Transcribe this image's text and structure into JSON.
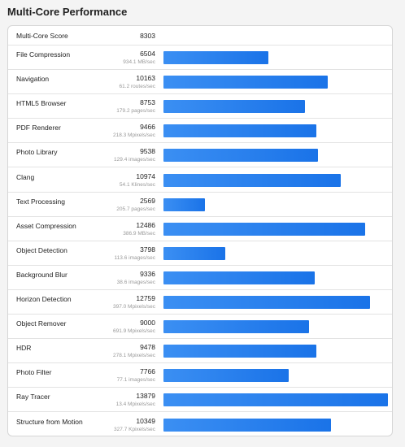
{
  "page": {
    "title": "Multi-Core Performance"
  },
  "chart_data": {
    "type": "bar",
    "title": "Multi-Core Performance",
    "summary": {
      "label": "Multi-Core Score",
      "value": 8303
    },
    "max_value": 13879,
    "bar_color": "#1a73e8",
    "rows": [
      {
        "name": "File Compression",
        "score": 6504,
        "detail": "934.1 MB/sec"
      },
      {
        "name": "Navigation",
        "score": 10163,
        "detail": "61.2 routes/sec"
      },
      {
        "name": "HTML5 Browser",
        "score": 8753,
        "detail": "179.2 pages/sec"
      },
      {
        "name": "PDF Renderer",
        "score": 9466,
        "detail": "218.3 Mpixels/sec"
      },
      {
        "name": "Photo Library",
        "score": 9538,
        "detail": "129.4 images/sec"
      },
      {
        "name": "Clang",
        "score": 10974,
        "detail": "54.1 Klines/sec"
      },
      {
        "name": "Text Processing",
        "score": 2569,
        "detail": "205.7 pages/sec"
      },
      {
        "name": "Asset Compression",
        "score": 12486,
        "detail": "386.9 MB/sec"
      },
      {
        "name": "Object Detection",
        "score": 3798,
        "detail": "113.6 images/sec"
      },
      {
        "name": "Background Blur",
        "score": 9336,
        "detail": "38.6 images/sec"
      },
      {
        "name": "Horizon Detection",
        "score": 12759,
        "detail": "397.0 Mpixels/sec"
      },
      {
        "name": "Object Remover",
        "score": 9000,
        "detail": "691.9 Mpixels/sec"
      },
      {
        "name": "HDR",
        "score": 9478,
        "detail": "278.1 Mpixels/sec"
      },
      {
        "name": "Photo Filter",
        "score": 7766,
        "detail": "77.1 images/sec"
      },
      {
        "name": "Ray Tracer",
        "score": 13879,
        "detail": "13.4 Mpixels/sec"
      },
      {
        "name": "Structure from Motion",
        "score": 10349,
        "detail": "327.7 Kpixels/sec"
      }
    ]
  }
}
